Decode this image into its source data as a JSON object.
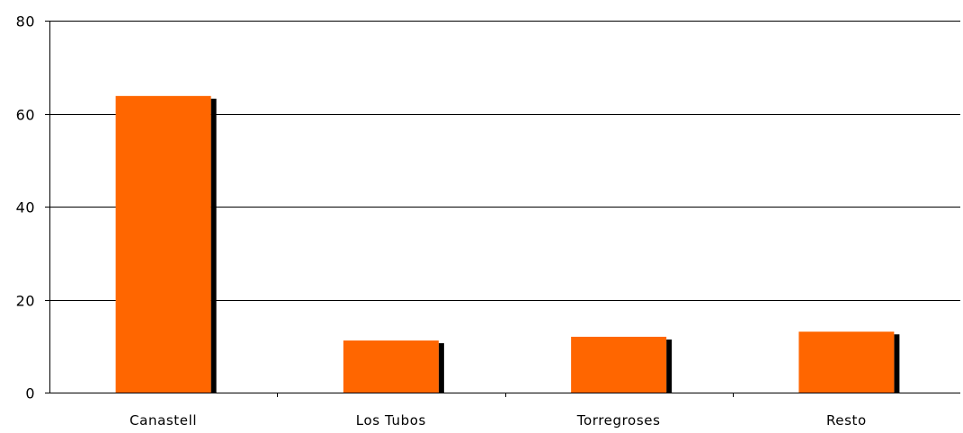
{
  "chart_data": {
    "type": "bar",
    "categories": [
      "Canastell",
      "Los Tubos",
      "Torregroses",
      "Resto"
    ],
    "values": [
      63.8,
      11.2,
      12,
      13.1
    ],
    "title": "",
    "xlabel": "",
    "ylabel": "",
    "ylim": [
      0,
      80
    ],
    "yticks": [
      0,
      20,
      40,
      60,
      80
    ],
    "grid": true,
    "legend": "none",
    "bar_color": "#ff6600",
    "shadow_color": "#000000",
    "gridline_color": "#000000"
  }
}
